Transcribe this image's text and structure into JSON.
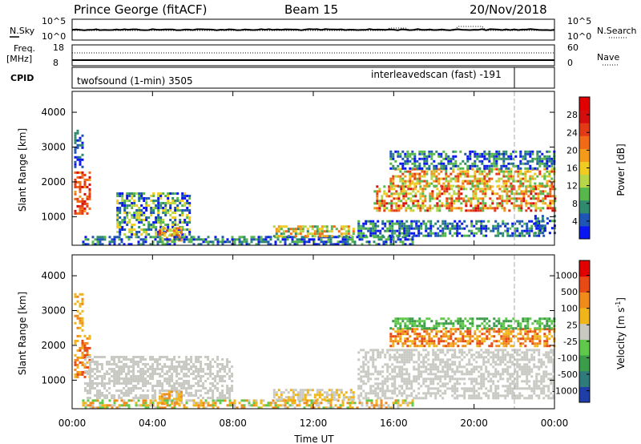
{
  "header": {
    "station": "Prince George (fitACF)",
    "beam": "Beam 15",
    "date": "20/Nov/2018"
  },
  "strip_nsky": {
    "left_label": "N.Sky",
    "right_label": "N.Search",
    "left_ticks": [
      "10^5",
      "10^0"
    ],
    "right_ticks": [
      "10^5",
      "10^0"
    ]
  },
  "strip_freq": {
    "left_label_1": "Freq.",
    "left_label_2": "[MHz]",
    "right_label": "Nave",
    "left_ticks": [
      "18",
      "8"
    ],
    "right_ticks": [
      "60",
      "0"
    ]
  },
  "strip_cpid": {
    "label": "CPID",
    "mode1": "twofsound (1-min) 3505",
    "mode2": "interleavedscan (fast) -191"
  },
  "x_axis": {
    "label": "Time UT",
    "ticks": [
      "00:00",
      "04:00",
      "08:00",
      "12:00",
      "16:00",
      "20:00",
      "00:00"
    ]
  },
  "chart_data": [
    {
      "type": "heatmap",
      "ylabel": "Slant Range [km]",
      "yticks": [
        "1000",
        "2000",
        "3000",
        "4000"
      ],
      "ylim": [
        180,
        4600
      ],
      "xlim_hours": [
        0,
        24
      ],
      "colorbar": {
        "label": "Power [dB]",
        "ticks": [
          "4",
          "8",
          "12",
          "16",
          "20",
          "24",
          "28"
        ],
        "colors": [
          "#0a16f0",
          "#1f55b4",
          "#2f8a6e",
          "#57b74c",
          "#b7d64a",
          "#f0cc22",
          "#f39a1a",
          "#f06a17",
          "#e23a16",
          "#d40d0d",
          "#e10000"
        ]
      },
      "regions": [
        {
          "t0": 0.1,
          "t1": 0.9,
          "r0": 1100,
          "r1": 2300,
          "c": [
            6,
            9
          ]
        },
        {
          "t0": 0.1,
          "t1": 0.5,
          "r0": 2400,
          "r1": 3500,
          "c": [
            0,
            2
          ]
        },
        {
          "t0": 2.2,
          "t1": 5.8,
          "r0": 500,
          "r1": 1700,
          "c": [
            0,
            5
          ]
        },
        {
          "t0": 4.3,
          "t1": 5.4,
          "r0": 350,
          "r1": 700,
          "c": [
            4,
            8
          ]
        },
        {
          "t0": 0.5,
          "t1": 17.0,
          "r0": 180,
          "r1": 450,
          "c": [
            0,
            3
          ]
        },
        {
          "t0": 10.0,
          "t1": 14.0,
          "r0": 450,
          "r1": 750,
          "c": [
            2,
            7
          ]
        },
        {
          "t0": 14.2,
          "t1": 23.5,
          "r0": 450,
          "r1": 900,
          "c": [
            0,
            3
          ]
        },
        {
          "t0": 15.0,
          "t1": 24.0,
          "r0": 1200,
          "r1": 1900,
          "c": [
            3,
            9
          ]
        },
        {
          "t0": 15.8,
          "t1": 24.0,
          "r0": 1900,
          "r1": 2400,
          "c": [
            3,
            8
          ]
        },
        {
          "t0": 15.8,
          "t1": 24.0,
          "r0": 2400,
          "r1": 2900,
          "c": [
            0,
            3
          ]
        },
        {
          "t0": 23.0,
          "t1": 24.0,
          "r0": 550,
          "r1": 1050,
          "c": [
            0,
            3
          ]
        }
      ]
    },
    {
      "type": "heatmap",
      "ylabel": "Slant Range [km]",
      "yticks": [
        "1000",
        "2000",
        "3000",
        "4000"
      ],
      "ylim": [
        180,
        4600
      ],
      "xlim_hours": [
        0,
        24
      ],
      "colorbar": {
        "label": "Velocity [m s^-1]",
        "ticks": [
          "1000",
          "500",
          "100",
          "25",
          "-25",
          "-100",
          "-500",
          "-1000"
        ],
        "colors": [
          "#1f3ea8",
          "#2f7a7a",
          "#3b9c4a",
          "#60c84a",
          "#c9c9c4",
          "#f1b51c",
          "#f08a1a",
          "#e84a16",
          "#e10000"
        ]
      },
      "regions": [
        {
          "t0": 0.1,
          "t1": 0.9,
          "r0": 1100,
          "r1": 2300,
          "c": [
            5,
            7
          ]
        },
        {
          "t0": 0.1,
          "t1": 0.5,
          "r0": 2400,
          "r1": 3500,
          "c": [
            5,
            6
          ]
        },
        {
          "t0": 0.6,
          "t1": 8.0,
          "r0": 500,
          "r1": 1700,
          "c": [
            4,
            4
          ]
        },
        {
          "t0": 4.3,
          "t1": 5.4,
          "r0": 350,
          "r1": 700,
          "c": [
            5,
            6
          ]
        },
        {
          "t0": 0.5,
          "t1": 17.0,
          "r0": 180,
          "r1": 450,
          "c": [
            3,
            6
          ]
        },
        {
          "t0": 10.0,
          "t1": 14.0,
          "r0": 450,
          "r1": 750,
          "c": [
            4,
            5
          ]
        },
        {
          "t0": 14.2,
          "t1": 24.0,
          "r0": 450,
          "r1": 1900,
          "c": [
            4,
            4
          ]
        },
        {
          "t0": 15.8,
          "t1": 24.0,
          "r0": 2000,
          "r1": 2500,
          "c": [
            5,
            7
          ]
        },
        {
          "t0": 15.8,
          "t1": 24.0,
          "r0": 2500,
          "r1": 2800,
          "c": [
            2,
            3
          ]
        }
      ]
    }
  ]
}
